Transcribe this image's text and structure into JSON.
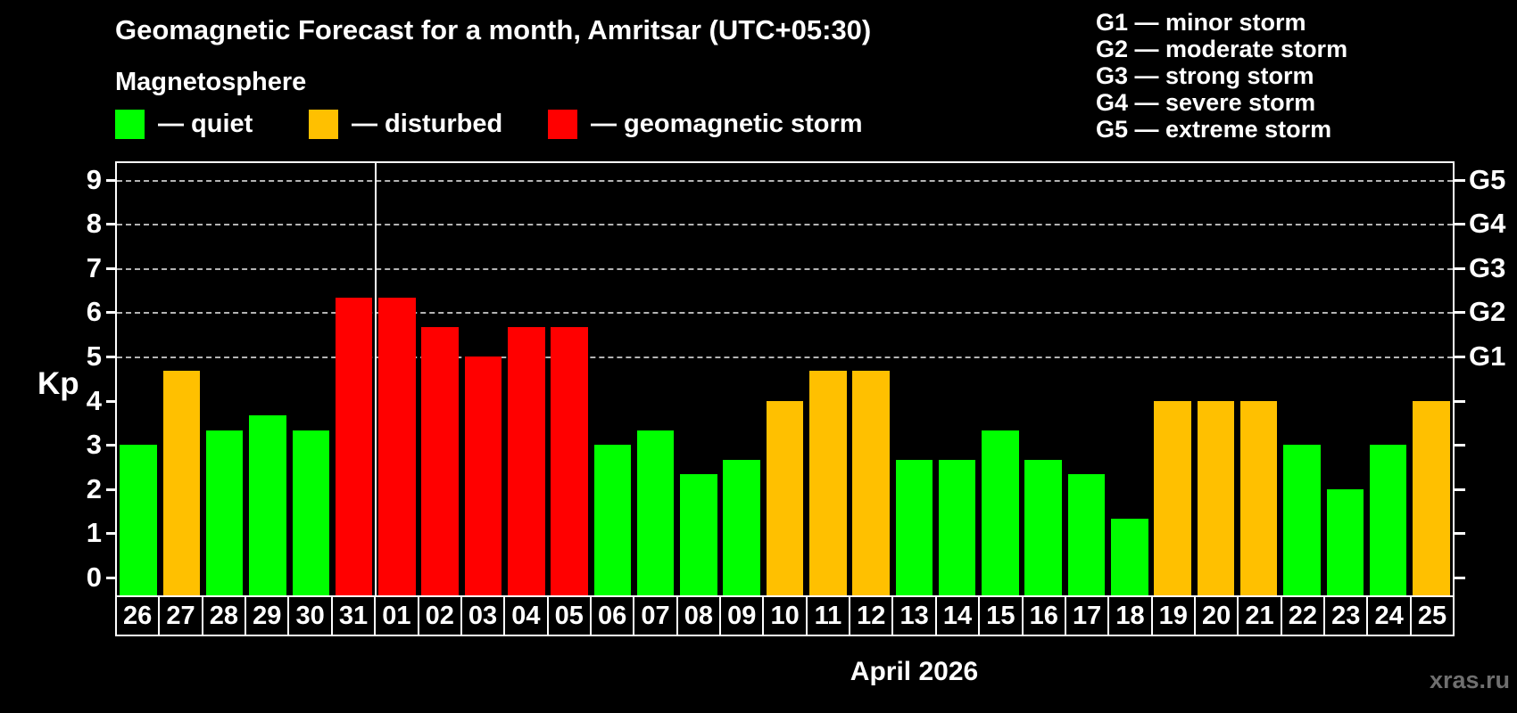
{
  "header": {
    "title": "Geomagnetic Forecast for a month, Amritsar (UTC+05:30)",
    "subtitle": "Magnetosphere",
    "legend": [
      {
        "id": "quiet",
        "swatch_color": "#00ff00",
        "label": "— quiet"
      },
      {
        "id": "disturbed",
        "swatch_color": "#ffc000",
        "label": "— disturbed"
      },
      {
        "id": "storm",
        "swatch_color": "#ff0000",
        "label": "— geomagnetic storm"
      }
    ],
    "g_legend": [
      "G1 — minor storm",
      "G2 — moderate storm",
      "G3 — strong storm",
      "G4 — severe storm",
      "G5 — extreme storm"
    ]
  },
  "chart_data": {
    "type": "bar",
    "title": "Geomagnetic Forecast for a month, Amritsar (UTC+05:30)",
    "subtitle": "Magnetosphere",
    "ylabel": "Kp",
    "xlabel": "April 2026",
    "ylim": [
      0,
      9
    ],
    "yticks": [
      "0",
      "1",
      "2",
      "3",
      "4",
      "5",
      "6",
      "7",
      "8",
      "9"
    ],
    "grid": "dashed horizontal gridlines at Kp 5-9 (G1-G5 levels)",
    "gridlines_kp": [
      5,
      6,
      7,
      8,
      9
    ],
    "right_axis": [
      {
        "label": "G1",
        "kp": 5
      },
      {
        "label": "G2",
        "kp": 6
      },
      {
        "label": "G3",
        "kp": 7
      },
      {
        "label": "G4",
        "kp": 8
      },
      {
        "label": "G5",
        "kp": 9
      }
    ],
    "legend_position": "top-left",
    "month_separator_after": "31",
    "categories": [
      "26",
      "27",
      "28",
      "29",
      "30",
      "31",
      "01",
      "02",
      "03",
      "04",
      "05",
      "06",
      "07",
      "08",
      "09",
      "10",
      "11",
      "12",
      "13",
      "14",
      "15",
      "16",
      "17",
      "18",
      "19",
      "20",
      "21",
      "22",
      "23",
      "24",
      "25"
    ],
    "values": [
      3.0,
      4.67,
      3.33,
      3.67,
      3.33,
      6.33,
      6.33,
      5.67,
      5.0,
      5.67,
      5.67,
      3.0,
      3.33,
      2.33,
      2.67,
      4.0,
      4.67,
      4.67,
      2.67,
      2.67,
      3.33,
      2.67,
      2.33,
      1.33,
      4.0,
      4.0,
      4.0,
      3.0,
      2.0,
      3.0,
      4.0
    ],
    "statuses": [
      "quiet",
      "disturbed",
      "quiet",
      "quiet",
      "quiet",
      "storm",
      "storm",
      "storm",
      "storm",
      "storm",
      "storm",
      "quiet",
      "quiet",
      "quiet",
      "quiet",
      "disturbed",
      "disturbed",
      "disturbed",
      "quiet",
      "quiet",
      "quiet",
      "quiet",
      "quiet",
      "quiet",
      "disturbed",
      "disturbed",
      "disturbed",
      "quiet",
      "quiet",
      "quiet",
      "disturbed"
    ],
    "status_colors": {
      "quiet": "#00ff00",
      "disturbed": "#ffc000",
      "storm": "#ff0000"
    }
  },
  "footer": {
    "watermark": "xras.ru"
  }
}
